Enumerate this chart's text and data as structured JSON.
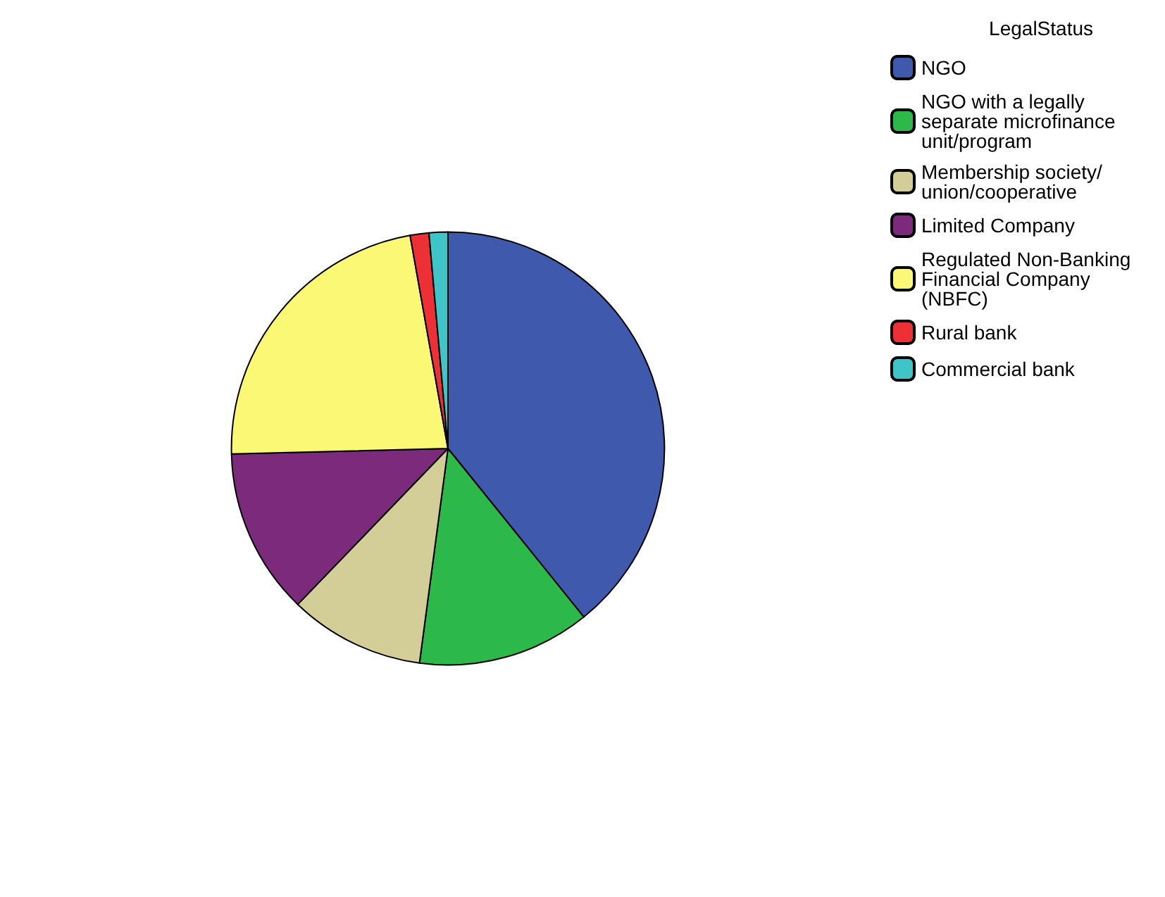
{
  "chart_data": {
    "type": "pie",
    "legend_title": "LegalStatus",
    "legend": "right",
    "categories": [
      "NGO",
      "NGO with a legally separate microfinance unit/program",
      "Membership society/union/cooperative",
      "Limited Company",
      "Regulated Non-Banking Financial Company (NBFC)",
      "Rural bank",
      "Commercial bank"
    ],
    "values": [
      39.2,
      12.9,
      10.1,
      12.4,
      22.6,
      1.4,
      1.4
    ],
    "colors": [
      "#3f5aad",
      "#2db84a",
      "#d3cd98",
      "#7b2a7c",
      "#fbf876",
      "#ec3035",
      "#3fc4c8"
    ]
  }
}
